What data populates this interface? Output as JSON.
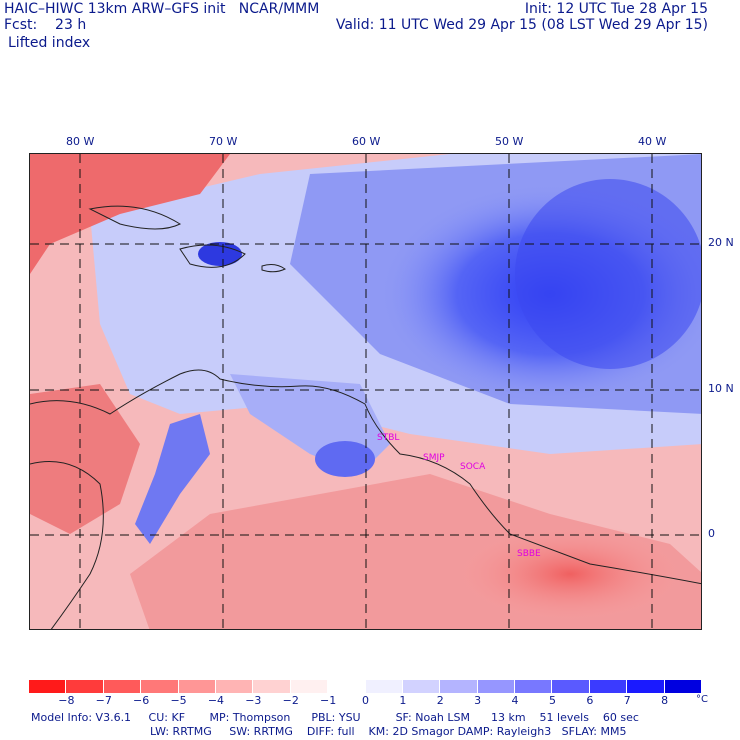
{
  "header": {
    "title": "HAIC–HIWC 13km ARW–GFS init   NCAR/MMM",
    "fcst": "Fcst:    23 h",
    "field": "Lifted index",
    "init": "Init: 12 UTC Tue 28 Apr 15",
    "valid": "Valid: 11 UTC Wed 29 Apr 15 (08 LST Wed 29 Apr 15)"
  },
  "map": {
    "lon_labels": [
      "80 W",
      "70 W",
      "60 W",
      "50 W",
      "40 W"
    ],
    "lat_labels": [
      "20 N",
      "10 N",
      "0"
    ],
    "site_labels": [
      "STBL",
      "SMJP",
      "SOCA",
      "SBBE"
    ],
    "site_color": "#e000e0"
  },
  "colorbar": {
    "colors": [
      "#ff1a1a",
      "#ff3b3b",
      "#ff5a5a",
      "#ff7878",
      "#ff9696",
      "#ffb4b4",
      "#ffd2d2",
      "#fff0f0",
      "#ffffff",
      "#f0f0ff",
      "#d2d2ff",
      "#b4b4ff",
      "#9696ff",
      "#7878ff",
      "#5a5aff",
      "#3b3bff",
      "#1a1aff",
      "#0000e0"
    ],
    "ticks": [
      "−8",
      "−7",
      "−6",
      "−5",
      "−4",
      "−3",
      "−2",
      "−1",
      "0",
      "1",
      "2",
      "3",
      "4",
      "5",
      "6",
      "7",
      "8"
    ],
    "unit": "°C"
  },
  "model_info": {
    "line1": "Model Info: V3.6.1     CU: KF       MP: Thompson      PBL: YSU          SF: Noah LSM      13 km    51 levels    60 sec",
    "line2": "LW: RRTMG     SW: RRTMG    DIFF: full    KM: 2D Smagor DAMP: Rayleigh3   SFLAY: MM5"
  }
}
